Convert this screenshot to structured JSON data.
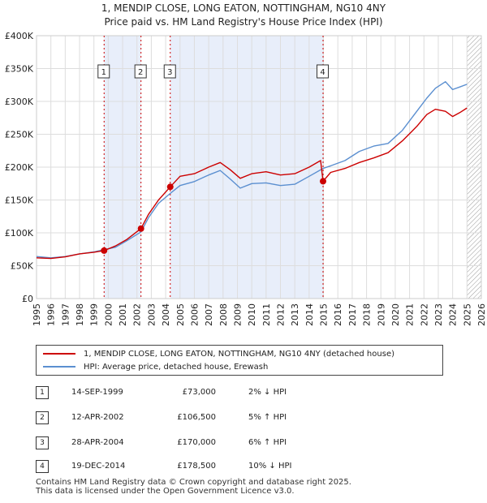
{
  "title_line1": "1, MENDIP CLOSE, LONG EATON, NOTTINGHAM, NG10 4NY",
  "title_line2": "Price paid vs. HM Land Registry's House Price Index (HPI)",
  "chart_data": {
    "type": "line",
    "x_ticks": [
      "1995",
      "1996",
      "1997",
      "1998",
      "1999",
      "2000",
      "2001",
      "2002",
      "2003",
      "2004",
      "2005",
      "2006",
      "2007",
      "2008",
      "2009",
      "2010",
      "2011",
      "2012",
      "2013",
      "2014",
      "2015",
      "2016",
      "2017",
      "2018",
      "2019",
      "2020",
      "2021",
      "2022",
      "2023",
      "2024",
      "2025",
      "2026"
    ],
    "y_ticks": [
      "£0",
      "£50K",
      "£100K",
      "£150K",
      "£200K",
      "£250K",
      "£300K",
      "£350K",
      "£400K"
    ],
    "xlim": [
      1995,
      2026
    ],
    "ylim": [
      0,
      400000
    ],
    "grid": true,
    "legend_position": "below",
    "shaded_periods": [
      [
        1999.71,
        2002.28
      ],
      [
        2004.32,
        2014.97
      ]
    ],
    "future_hatch_from": 2025.0,
    "series": [
      {
        "name": "1, MENDIP CLOSE, LONG EATON, NOTTINGHAM, NG10 4NY (detached house)",
        "color": "#cc0000",
        "points": [
          [
            1995.0,
            62000
          ],
          [
            1996.0,
            61000
          ],
          [
            1997.0,
            63500
          ],
          [
            1998.0,
            68000
          ],
          [
            1999.0,
            70500
          ],
          [
            1999.71,
            73000
          ],
          [
            2000.5,
            80000
          ],
          [
            2001.3,
            90000
          ],
          [
            2002.28,
            106500
          ],
          [
            2002.8,
            128000
          ],
          [
            2003.5,
            150000
          ],
          [
            2004.32,
            170000
          ],
          [
            2005.0,
            186000
          ],
          [
            2006.0,
            190000
          ],
          [
            2007.0,
            200000
          ],
          [
            2007.8,
            207000
          ],
          [
            2008.5,
            196000
          ],
          [
            2009.2,
            183000
          ],
          [
            2010.0,
            190000
          ],
          [
            2011.0,
            193000
          ],
          [
            2012.0,
            188000
          ],
          [
            2013.0,
            190000
          ],
          [
            2014.0,
            200000
          ],
          [
            2014.8,
            210000
          ],
          [
            2014.97,
            178500
          ],
          [
            2015.5,
            192000
          ],
          [
            2016.5,
            198000
          ],
          [
            2017.5,
            207000
          ],
          [
            2018.5,
            214000
          ],
          [
            2019.5,
            222000
          ],
          [
            2020.5,
            240000
          ],
          [
            2021.5,
            262000
          ],
          [
            2022.2,
            280000
          ],
          [
            2022.8,
            288000
          ],
          [
            2023.5,
            285000
          ],
          [
            2024.0,
            277000
          ],
          [
            2024.5,
            283000
          ],
          [
            2025.0,
            290000
          ]
        ]
      },
      {
        "name": "HPI: Average price, detached house, Erewash",
        "color": "#5b8fd0",
        "points": [
          [
            1995.0,
            64000
          ],
          [
            1996.0,
            62000
          ],
          [
            1997.0,
            64000
          ],
          [
            1998.0,
            68000
          ],
          [
            1999.0,
            71000
          ],
          [
            1999.71,
            74500
          ],
          [
            2000.5,
            78000
          ],
          [
            2001.3,
            88000
          ],
          [
            2002.28,
            101500
          ],
          [
            2002.8,
            123000
          ],
          [
            2003.5,
            145000
          ],
          [
            2004.32,
            160000
          ],
          [
            2005.0,
            172000
          ],
          [
            2006.0,
            178000
          ],
          [
            2007.0,
            188000
          ],
          [
            2007.8,
            195000
          ],
          [
            2008.5,
            182000
          ],
          [
            2009.2,
            168000
          ],
          [
            2010.0,
            175000
          ],
          [
            2011.0,
            176000
          ],
          [
            2012.0,
            172000
          ],
          [
            2013.0,
            174000
          ],
          [
            2014.0,
            186000
          ],
          [
            2014.97,
            198000
          ],
          [
            2015.5,
            202000
          ],
          [
            2016.5,
            210000
          ],
          [
            2017.5,
            224000
          ],
          [
            2018.5,
            232000
          ],
          [
            2019.5,
            236000
          ],
          [
            2020.5,
            256000
          ],
          [
            2021.5,
            285000
          ],
          [
            2022.2,
            305000
          ],
          [
            2022.8,
            320000
          ],
          [
            2023.5,
            330000
          ],
          [
            2024.0,
            318000
          ],
          [
            2024.5,
            322000
          ],
          [
            2025.0,
            326000
          ]
        ]
      }
    ],
    "sales": [
      {
        "label": "1",
        "x": 1999.71,
        "y": 73000
      },
      {
        "label": "2",
        "x": 2002.28,
        "y": 106500
      },
      {
        "label": "3",
        "x": 2004.32,
        "y": 170000
      },
      {
        "label": "4",
        "x": 2014.97,
        "y": 178500
      }
    ]
  },
  "legend": {
    "property": "1, MENDIP CLOSE, LONG EATON, NOTTINGHAM, NG10 4NY (detached house)",
    "hpi": "HPI: Average price, detached house, Erewash"
  },
  "colors": {
    "property": "#cc0000",
    "hpi": "#5b8fd0",
    "shade": "#e8eefa"
  },
  "table": [
    {
      "num": "1",
      "date": "14-SEP-1999",
      "price": "£73,000",
      "hpi": "2% ↓ HPI"
    },
    {
      "num": "2",
      "date": "12-APR-2002",
      "price": "£106,500",
      "hpi": "5% ↑ HPI"
    },
    {
      "num": "3",
      "date": "28-APR-2004",
      "price": "£170,000",
      "hpi": "6% ↑ HPI"
    },
    {
      "num": "4",
      "date": "19-DEC-2014",
      "price": "£178,500",
      "hpi": "10% ↓ HPI"
    }
  ],
  "footer": {
    "line1": "Contains HM Land Registry data © Crown copyright and database right 2025.",
    "line2": "This data is licensed under the Open Government Licence v3.0."
  }
}
